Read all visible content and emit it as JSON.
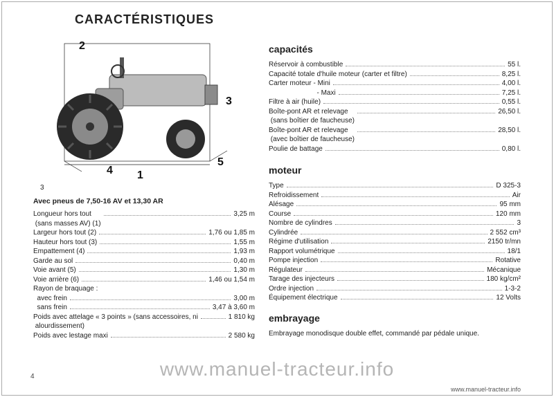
{
  "title": "CARACTÉRISTIQUES",
  "page_number": "4",
  "watermark": "www.manuel-tracteur.info",
  "footer": "www.manuel-tracteur.info",
  "figure": {
    "callouts": [
      "1",
      "2",
      "3",
      "4",
      "5"
    ],
    "stray": "3"
  },
  "dimensions": {
    "heading": "Avec pneus de 7,50-16 AV et 13,30 AR",
    "rows": [
      {
        "label": "Longueur hors tout\n (sans masses AV) (1)",
        "value": "3,25 m"
      },
      {
        "label": "Largeur hors tout (2)",
        "value": "1,76 ou 1,85 m"
      },
      {
        "label": "Hauteur hors tout (3)",
        "value": "1,55 m"
      },
      {
        "label": "Empattement (4)",
        "value": "1,93 m"
      },
      {
        "label": "Garde au sol",
        "value": "0,40 m"
      },
      {
        "label": "Voie avant (5)",
        "value": "1,30 m"
      },
      {
        "label": "Voie arrière (6)",
        "value": "1,46 ou 1,54 m"
      },
      {
        "label": "Rayon de braquage :",
        "value": ""
      },
      {
        "label": "  avec frein",
        "value": "3,00 m"
      },
      {
        "label": "  sans frein",
        "value": "3,47 à 3,60 m"
      },
      {
        "label": "Poids avec attelage « 3 points » (sans accessoires, ni\n alourdissement)",
        "value": "1 810 kg"
      },
      {
        "label": "Poids avec lestage maxi",
        "value": "2 580 kg"
      }
    ]
  },
  "capacities": {
    "heading": "capacités",
    "rows": [
      {
        "label": "Réservoir à combustible",
        "value": "55 l."
      },
      {
        "label": "Capacité totale d'huile moteur (carter et filtre)",
        "value": "8,25 l."
      },
      {
        "label": "Carter moteur - Mini",
        "value": "4,00 l."
      },
      {
        "label": "                         - Maxi",
        "value": "7,25 l."
      },
      {
        "label": "Filtre à air (huile)",
        "value": "0,55 l."
      },
      {
        "label": "Boîte-pont AR et relevage\n (sans boîtier de faucheuse)",
        "value": "26,50 l."
      },
      {
        "label": "Boîte-pont AR et relevage\n (avec boîtier de faucheuse)",
        "value": "28,50 l."
      },
      {
        "label": "Poulie de battage",
        "value": "0,80 l."
      }
    ]
  },
  "engine": {
    "heading": "moteur",
    "rows": [
      {
        "label": "Type",
        "value": "D 325-3"
      },
      {
        "label": "Refroidissement",
        "value": "Air"
      },
      {
        "label": "Alésage",
        "value": "95 mm"
      },
      {
        "label": "Course",
        "value": "120 mm"
      },
      {
        "label": "Nombre de cylindres",
        "value": "3"
      },
      {
        "label": "Cylindrée",
        "value": "2 552 cm³"
      },
      {
        "label": "Régime d'utilisation",
        "value": "2150 tr/mn"
      },
      {
        "label": "Rapport volumétrique",
        "value": "18/1"
      },
      {
        "label": "Pompe injection",
        "value": "Rotative"
      },
      {
        "label": "Régulateur",
        "value": "Mécanique"
      },
      {
        "label": "Tarage des injecteurs",
        "value": "180 kg/cm²"
      },
      {
        "label": "Ordre injection",
        "value": "1-3-2"
      },
      {
        "label": "Équipement électrique",
        "value": "12 Volts"
      }
    ]
  },
  "clutch": {
    "heading": "embrayage",
    "text": "Embrayage monodisque double effet, commandé par pédale unique."
  }
}
